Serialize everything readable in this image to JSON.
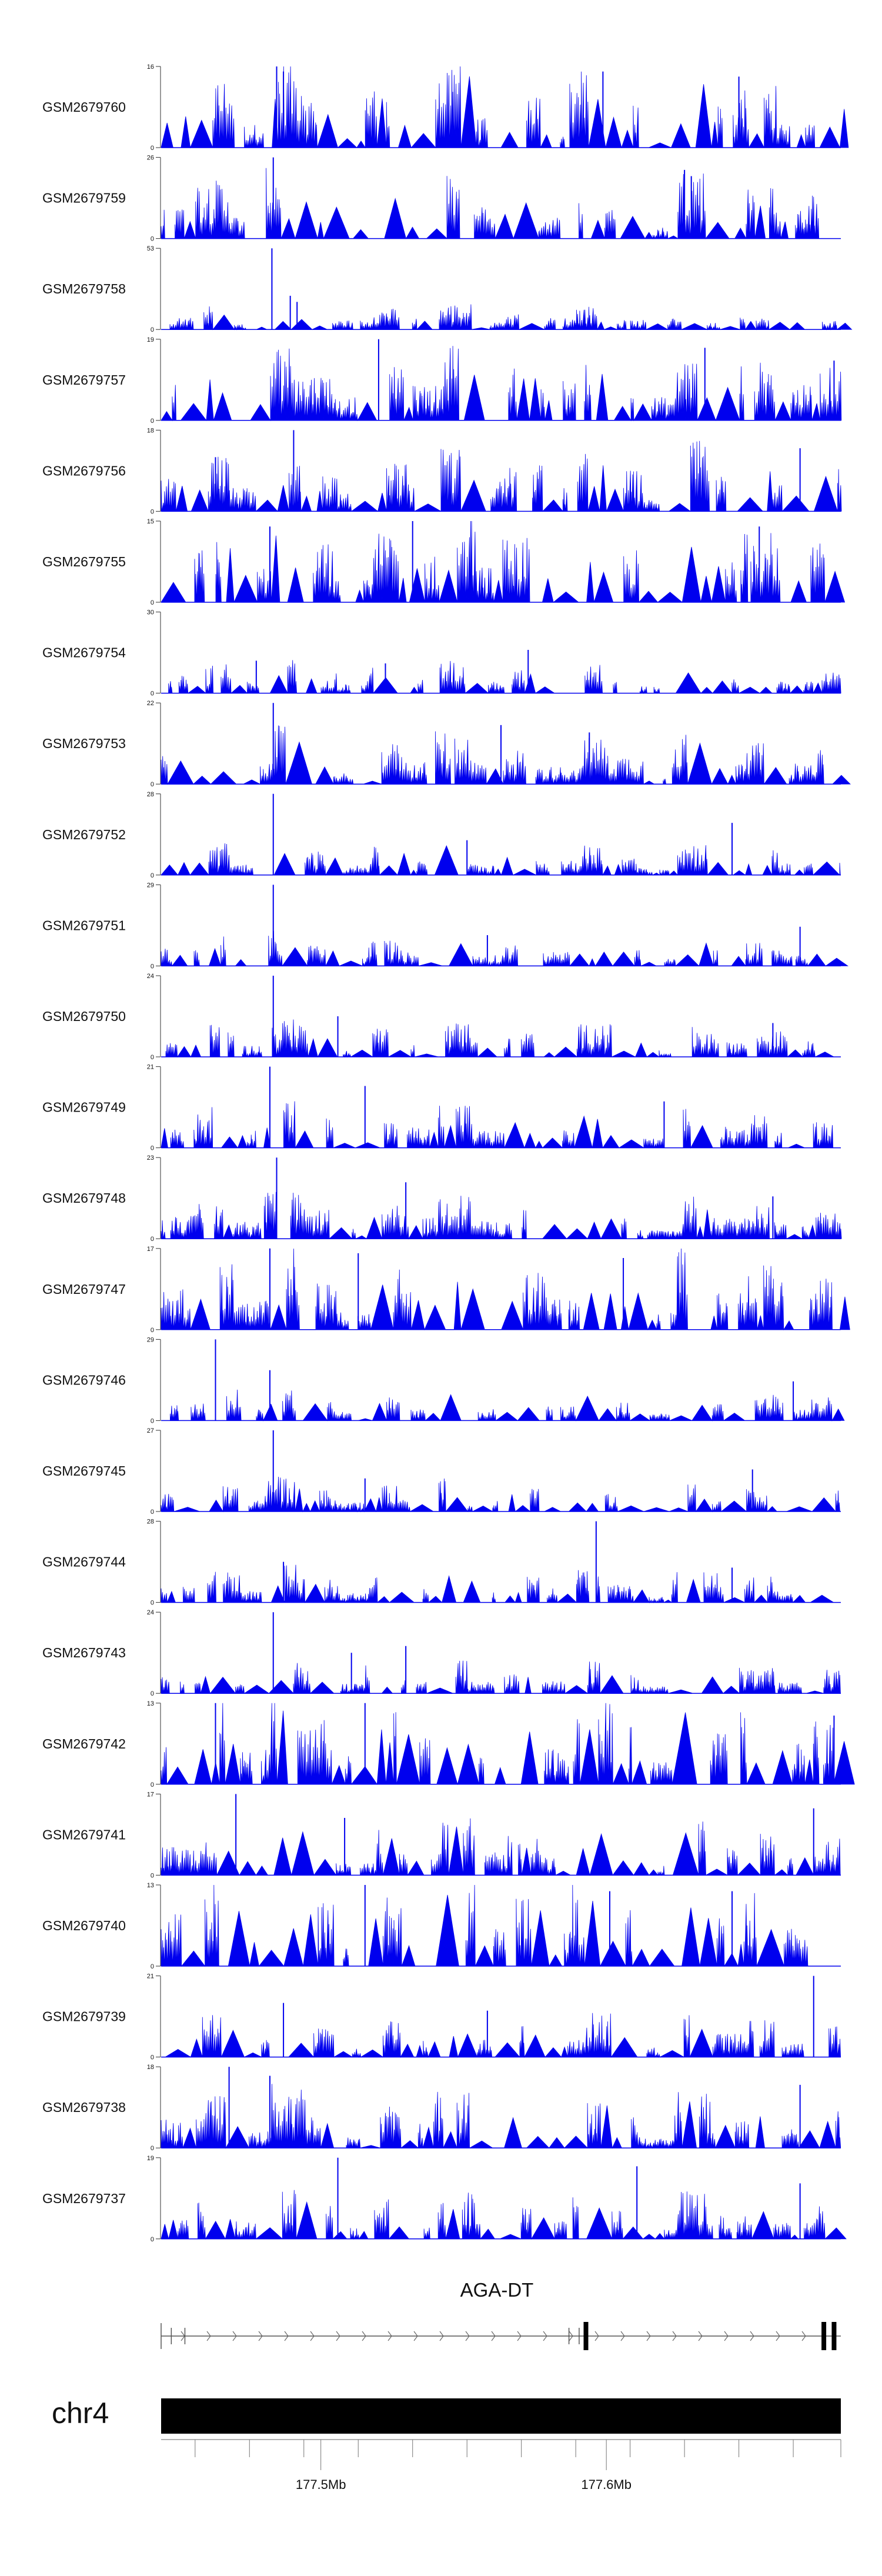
{
  "chart_data": {
    "type": "area",
    "description_hint": "",
    "series": [
      {
        "name": "GSM2679760",
        "ymax": 16,
        "ymin_label": "0",
        "pattern": [
          0.35,
          0.6,
          0.2,
          0.75,
          0.45,
          0.1,
          0.55,
          0.3,
          0.8,
          0.25,
          0.5,
          0.15,
          0.65,
          0.4,
          0.05,
          0.7,
          0.35,
          0.55,
          0.2,
          0.45
        ],
        "peaks": [
          {
            "x": 0.17,
            "v": 16
          },
          {
            "x": 0.18,
            "v": 15
          },
          {
            "x": 0.65,
            "v": 15
          },
          {
            "x": 0.85,
            "v": 14
          }
        ]
      },
      {
        "name": "GSM2679759",
        "ymax": 26,
        "ymin_label": "0",
        "pattern": [
          0.3,
          0.5,
          0.2,
          0.6,
          0.35,
          0.15,
          0.45,
          0.25,
          0.55,
          0.3,
          0.4,
          0.2,
          0.5,
          0.35,
          0.1,
          0.6,
          0.3,
          0.45,
          0.25,
          0.4
        ],
        "peaks": [
          {
            "x": 0.165,
            "v": 26
          },
          {
            "x": 0.77,
            "v": 22
          },
          {
            "x": 0.78,
            "v": 20
          }
        ]
      },
      {
        "name": "GSM2679758",
        "ymax": 53,
        "ymin_label": "0",
        "pattern": [
          0.1,
          0.2,
          0.05,
          0.15,
          0.12,
          0.08,
          0.18,
          0.1,
          0.22,
          0.06,
          0.14,
          0.1,
          0.2,
          0.08,
          0.12,
          0.16,
          0.06,
          0.1,
          0.14,
          0.08
        ],
        "peaks": [
          {
            "x": 0.163,
            "v": 53
          },
          {
            "x": 0.19,
            "v": 22
          },
          {
            "x": 0.2,
            "v": 18
          }
        ]
      },
      {
        "name": "GSM2679757",
        "ymax": 19,
        "ymin_label": "0",
        "pattern": [
          0.35,
          0.55,
          0.25,
          0.65,
          0.4,
          0.2,
          0.5,
          0.3,
          0.7,
          0.25,
          0.45,
          0.35,
          0.6,
          0.3,
          0.2,
          0.55,
          0.4,
          0.5,
          0.3,
          0.45
        ],
        "peaks": [
          {
            "x": 0.32,
            "v": 19
          },
          {
            "x": 0.8,
            "v": 17
          },
          {
            "x": 0.99,
            "v": 14
          }
        ]
      },
      {
        "name": "GSM2679756",
        "ymax": 18,
        "ymin_label": "0",
        "pattern": [
          0.3,
          0.5,
          0.2,
          0.6,
          0.35,
          0.15,
          0.45,
          0.25,
          0.55,
          0.3,
          0.4,
          0.2,
          0.5,
          0.35,
          0.1,
          0.6,
          0.3,
          0.45,
          0.25,
          0.4
        ],
        "peaks": [
          {
            "x": 0.195,
            "v": 18
          },
          {
            "x": 0.94,
            "v": 14
          },
          {
            "x": 0.08,
            "v": 12
          }
        ]
      },
      {
        "name": "GSM2679755",
        "ymax": 15,
        "ymin_label": "0",
        "pattern": [
          0.45,
          0.7,
          0.3,
          0.8,
          0.5,
          0.2,
          0.6,
          0.4,
          0.85,
          0.3,
          0.55,
          0.25,
          0.7,
          0.45,
          0.15,
          0.75,
          0.4,
          0.6,
          0.3,
          0.5
        ],
        "peaks": [
          {
            "x": 0.37,
            "v": 15
          },
          {
            "x": 0.16,
            "v": 14
          },
          {
            "x": 0.88,
            "v": 14
          }
        ]
      },
      {
        "name": "GSM2679754",
        "ymax": 30,
        "ymin_label": "0",
        "pattern": [
          0.15,
          0.25,
          0.1,
          0.3,
          0.18,
          0.08,
          0.22,
          0.12,
          0.28,
          0.1,
          0.2,
          0.12,
          0.26,
          0.15,
          0.06,
          0.24,
          0.14,
          0.2,
          0.1,
          0.18
        ],
        "peaks": [
          {
            "x": 0.54,
            "v": 16
          },
          {
            "x": 0.14,
            "v": 12
          },
          {
            "x": 0.33,
            "v": 11
          }
        ]
      },
      {
        "name": "GSM2679753",
        "ymax": 22,
        "ymin_label": "0",
        "pattern": [
          0.25,
          0.4,
          0.15,
          0.5,
          0.3,
          0.1,
          0.35,
          0.2,
          0.45,
          0.2,
          0.3,
          0.15,
          0.4,
          0.25,
          0.08,
          0.45,
          0.22,
          0.35,
          0.18,
          0.3
        ],
        "peaks": [
          {
            "x": 0.165,
            "v": 22
          },
          {
            "x": 0.5,
            "v": 16
          },
          {
            "x": 0.63,
            "v": 14
          }
        ]
      },
      {
        "name": "GSM2679752",
        "ymax": 28,
        "ymin_label": "0",
        "pattern": [
          0.15,
          0.28,
          0.1,
          0.3,
          0.2,
          0.08,
          0.24,
          0.12,
          0.3,
          0.1,
          0.2,
          0.12,
          0.26,
          0.16,
          0.06,
          0.28,
          0.14,
          0.22,
          0.1,
          0.2
        ],
        "peaks": [
          {
            "x": 0.165,
            "v": 28
          },
          {
            "x": 0.84,
            "v": 18
          },
          {
            "x": 0.45,
            "v": 12
          }
        ]
      },
      {
        "name": "GSM2679751",
        "ymax": 29,
        "ymin_label": "0",
        "pattern": [
          0.15,
          0.25,
          0.1,
          0.3,
          0.18,
          0.08,
          0.22,
          0.12,
          0.28,
          0.1,
          0.2,
          0.12,
          0.26,
          0.15,
          0.06,
          0.24,
          0.14,
          0.2,
          0.1,
          0.18
        ],
        "peaks": [
          {
            "x": 0.165,
            "v": 29
          },
          {
            "x": 0.94,
            "v": 14
          },
          {
            "x": 0.48,
            "v": 11
          }
        ]
      },
      {
        "name": "GSM2679750",
        "ymax": 24,
        "ymin_label": "0",
        "pattern": [
          0.15,
          0.28,
          0.1,
          0.32,
          0.2,
          0.08,
          0.24,
          0.12,
          0.3,
          0.1,
          0.22,
          0.12,
          0.28,
          0.16,
          0.06,
          0.26,
          0.14,
          0.22,
          0.1,
          0.2
        ],
        "peaks": [
          {
            "x": 0.165,
            "v": 24
          },
          {
            "x": 0.26,
            "v": 12
          },
          {
            "x": 0.9,
            "v": 10
          }
        ]
      },
      {
        "name": "GSM2679749",
        "ymax": 21,
        "ymin_label": "0",
        "pattern": [
          0.2,
          0.35,
          0.15,
          0.4,
          0.25,
          0.1,
          0.3,
          0.18,
          0.38,
          0.15,
          0.28,
          0.15,
          0.35,
          0.2,
          0.08,
          0.36,
          0.18,
          0.3,
          0.14,
          0.25
        ],
        "peaks": [
          {
            "x": 0.16,
            "v": 21
          },
          {
            "x": 0.3,
            "v": 16
          },
          {
            "x": 0.74,
            "v": 12
          }
        ]
      },
      {
        "name": "GSM2679748",
        "ymax": 23,
        "ymin_label": "0",
        "pattern": [
          0.2,
          0.35,
          0.15,
          0.4,
          0.25,
          0.1,
          0.3,
          0.18,
          0.38,
          0.15,
          0.28,
          0.15,
          0.35,
          0.2,
          0.08,
          0.36,
          0.18,
          0.3,
          0.14,
          0.25
        ],
        "peaks": [
          {
            "x": 0.17,
            "v": 23
          },
          {
            "x": 0.36,
            "v": 16
          },
          {
            "x": 0.9,
            "v": 12
          }
        ]
      },
      {
        "name": "GSM2679747",
        "ymax": 17,
        "ymin_label": "0",
        "pattern": [
          0.35,
          0.6,
          0.25,
          0.7,
          0.45,
          0.15,
          0.55,
          0.35,
          0.75,
          0.25,
          0.5,
          0.3,
          0.65,
          0.4,
          0.15,
          0.7,
          0.35,
          0.55,
          0.25,
          0.45
        ],
        "peaks": [
          {
            "x": 0.16,
            "v": 17
          },
          {
            "x": 0.29,
            "v": 16
          },
          {
            "x": 0.68,
            "v": 15
          }
        ]
      },
      {
        "name": "GSM2679746",
        "ymax": 29,
        "ymin_label": "0",
        "pattern": [
          0.15,
          0.28,
          0.1,
          0.3,
          0.2,
          0.08,
          0.24,
          0.12,
          0.3,
          0.1,
          0.2,
          0.12,
          0.26,
          0.16,
          0.06,
          0.28,
          0.14,
          0.22,
          0.1,
          0.2
        ],
        "peaks": [
          {
            "x": 0.08,
            "v": 29
          },
          {
            "x": 0.16,
            "v": 18
          },
          {
            "x": 0.93,
            "v": 14
          }
        ]
      },
      {
        "name": "GSM2679745",
        "ymax": 27,
        "ymin_label": "0",
        "pattern": [
          0.15,
          0.25,
          0.1,
          0.3,
          0.18,
          0.08,
          0.22,
          0.12,
          0.28,
          0.1,
          0.2,
          0.12,
          0.26,
          0.15,
          0.06,
          0.24,
          0.14,
          0.2,
          0.1,
          0.18
        ],
        "peaks": [
          {
            "x": 0.165,
            "v": 27
          },
          {
            "x": 0.87,
            "v": 14
          },
          {
            "x": 0.3,
            "v": 11
          }
        ]
      },
      {
        "name": "GSM2679744",
        "ymax": 28,
        "ymin_label": "0",
        "pattern": [
          0.15,
          0.28,
          0.1,
          0.32,
          0.2,
          0.08,
          0.24,
          0.12,
          0.3,
          0.1,
          0.22,
          0.12,
          0.28,
          0.16,
          0.06,
          0.26,
          0.14,
          0.22,
          0.1,
          0.2
        ],
        "peaks": [
          {
            "x": 0.64,
            "v": 28
          },
          {
            "x": 0.18,
            "v": 14
          },
          {
            "x": 0.84,
            "v": 12
          }
        ]
      },
      {
        "name": "GSM2679743",
        "ymax": 24,
        "ymin_label": "0",
        "pattern": [
          0.15,
          0.28,
          0.1,
          0.32,
          0.2,
          0.08,
          0.24,
          0.12,
          0.3,
          0.1,
          0.22,
          0.12,
          0.28,
          0.16,
          0.06,
          0.26,
          0.14,
          0.22,
          0.1,
          0.2
        ],
        "peaks": [
          {
            "x": 0.165,
            "v": 24
          },
          {
            "x": 0.36,
            "v": 14
          },
          {
            "x": 0.28,
            "v": 12
          }
        ]
      },
      {
        "name": "GSM2679742",
        "ymax": 13,
        "ymin_label": "0",
        "pattern": [
          0.45,
          0.75,
          0.3,
          0.85,
          0.55,
          0.25,
          0.65,
          0.4,
          0.9,
          0.35,
          0.6,
          0.3,
          0.75,
          0.5,
          0.2,
          0.8,
          0.45,
          0.65,
          0.35,
          0.55
        ],
        "peaks": [
          {
            "x": 0.08,
            "v": 13
          },
          {
            "x": 0.3,
            "v": 13
          },
          {
            "x": 0.99,
            "v": 11
          }
        ]
      },
      {
        "name": "GSM2679741",
        "ymax": 17,
        "ymin_label": "0",
        "pattern": [
          0.25,
          0.45,
          0.15,
          0.55,
          0.3,
          0.1,
          0.4,
          0.22,
          0.5,
          0.2,
          0.35,
          0.15,
          0.45,
          0.28,
          0.08,
          0.5,
          0.25,
          0.38,
          0.18,
          0.32
        ],
        "peaks": [
          {
            "x": 0.11,
            "v": 17
          },
          {
            "x": 0.96,
            "v": 14
          },
          {
            "x": 0.27,
            "v": 12
          }
        ]
      },
      {
        "name": "GSM2679740",
        "ymax": 13,
        "ymin_label": "0",
        "pattern": [
          0.45,
          0.75,
          0.3,
          0.85,
          0.55,
          0.25,
          0.65,
          0.4,
          0.9,
          0.35,
          0.6,
          0.3,
          0.75,
          0.5,
          0.2,
          0.8,
          0.45,
          0.65,
          0.35,
          0.55
        ],
        "peaks": [
          {
            "x": 0.3,
            "v": 13
          },
          {
            "x": 0.66,
            "v": 12
          },
          {
            "x": 0.84,
            "v": 12
          }
        ]
      },
      {
        "name": "GSM2679739",
        "ymax": 21,
        "ymin_label": "0",
        "pattern": [
          0.2,
          0.38,
          0.15,
          0.45,
          0.25,
          0.1,
          0.32,
          0.18,
          0.4,
          0.15,
          0.3,
          0.15,
          0.38,
          0.22,
          0.08,
          0.4,
          0.2,
          0.32,
          0.14,
          0.28
        ],
        "peaks": [
          {
            "x": 0.96,
            "v": 21
          },
          {
            "x": 0.18,
            "v": 14
          },
          {
            "x": 0.48,
            "v": 12
          }
        ]
      },
      {
        "name": "GSM2679738",
        "ymax": 18,
        "ymin_label": "0",
        "pattern": [
          0.25,
          0.45,
          0.15,
          0.55,
          0.3,
          0.1,
          0.4,
          0.22,
          0.5,
          0.2,
          0.35,
          0.15,
          0.45,
          0.28,
          0.08,
          0.5,
          0.25,
          0.38,
          0.18,
          0.32
        ],
        "peaks": [
          {
            "x": 0.1,
            "v": 18
          },
          {
            "x": 0.16,
            "v": 16
          },
          {
            "x": 0.94,
            "v": 14
          }
        ]
      },
      {
        "name": "GSM2679737",
        "ymax": 19,
        "ymin_label": "0",
        "pattern": [
          0.2,
          0.4,
          0.15,
          0.45,
          0.28,
          0.1,
          0.34,
          0.18,
          0.42,
          0.16,
          0.3,
          0.15,
          0.4,
          0.24,
          0.08,
          0.42,
          0.2,
          0.34,
          0.15,
          0.3
        ],
        "peaks": [
          {
            "x": 0.26,
            "v": 19
          },
          {
            "x": 0.7,
            "v": 17
          },
          {
            "x": 0.94,
            "v": 13
          }
        ]
      }
    ],
    "gene": {
      "name": "AGA-DT",
      "exons": [
        0.625,
        0.975,
        0.99
      ],
      "small_ticks": [
        0.015,
        0.035,
        0.6,
        0.615
      ]
    },
    "chromosome": {
      "label": "chr4",
      "ticks": [
        0.05,
        0.13,
        0.21,
        0.29,
        0.37,
        0.45,
        0.53,
        0.61,
        0.69,
        0.77,
        0.85,
        0.93,
        1.0
      ],
      "labeled_ticks": [
        {
          "x": 0.235,
          "label": "177.5Mb"
        },
        {
          "x": 0.655,
          "label": "177.6Mb"
        }
      ]
    },
    "colors": {
      "signal": "#0000ee",
      "axis": "#333333",
      "ideogram": "#000000",
      "text": "#111111"
    },
    "xlabel": "",
    "ylabel": ""
  }
}
